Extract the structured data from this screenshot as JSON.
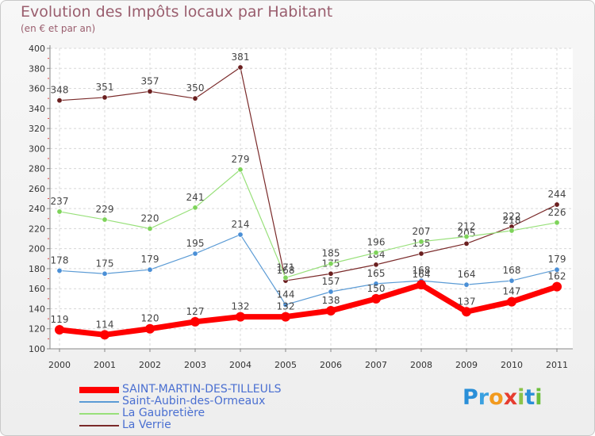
{
  "header": {
    "title": "Evolution des Impôts locaux par Habitant",
    "subtitle": "(en € et par an)"
  },
  "logo": {
    "letters": [
      "P",
      "r",
      "o",
      "x",
      "i",
      "t",
      "i"
    ],
    "colors": [
      "#2a8fd8",
      "#3aa0e0",
      "#f29a1e",
      "#e63c2f",
      "#8bc34a",
      "#2a8fd8",
      "#6cbf3c"
    ]
  },
  "chart_data": {
    "type": "line",
    "x": [
      "2000",
      "2001",
      "2002",
      "2003",
      "2004",
      "2005",
      "2006",
      "2007",
      "2008",
      "2009",
      "2010",
      "2011"
    ],
    "ylim": [
      100,
      400
    ],
    "yticks": [
      "100",
      "120",
      "140",
      "160",
      "180",
      "200",
      "220",
      "240",
      "260",
      "280",
      "300",
      "320",
      "340",
      "360",
      "380",
      "400"
    ],
    "grid": true,
    "legend_position": "bottom-left",
    "series": [
      {
        "name": "SAINT-MARTIN-DES-TILLEULS",
        "color": "#ff0000",
        "values": [
          119,
          114,
          120,
          127,
          132,
          132,
          138,
          150,
          164,
          137,
          147,
          162
        ],
        "labels": [
          "119",
          "114",
          "120",
          "127",
          "132",
          "132",
          "138",
          "150",
          "164",
          "137",
          "147",
          "162"
        ]
      },
      {
        "name": "Saint-Aubin-des-Ormeaux",
        "color": "#5b9bd5",
        "values": [
          178,
          175,
          179,
          195,
          214,
          144,
          157,
          165,
          168,
          164,
          168,
          179
        ],
        "labels": [
          "178",
          "175",
          "179",
          "195",
          "214",
          "144",
          "157",
          "165",
          "168",
          "164",
          "168",
          "179"
        ]
      },
      {
        "name": "La Gaubretière",
        "color": "#98e07a",
        "values": [
          237,
          229,
          220,
          241,
          279,
          171,
          185,
          196,
          207,
          212,
          218,
          226
        ],
        "labels": [
          "237",
          "229",
          "220",
          "241",
          "279",
          "171",
          "185",
          "196",
          "207",
          "212",
          "218",
          "226"
        ]
      },
      {
        "name": "La Verrie",
        "color": "#7a2a2a",
        "values": [
          348,
          351,
          357,
          350,
          381,
          168,
          175,
          184,
          195,
          205,
          222,
          244
        ],
        "labels": [
          "348",
          "351",
          "357",
          "350",
          "381",
          "168",
          "175",
          "184",
          "195",
          "205",
          "222",
          "244"
        ]
      }
    ]
  }
}
